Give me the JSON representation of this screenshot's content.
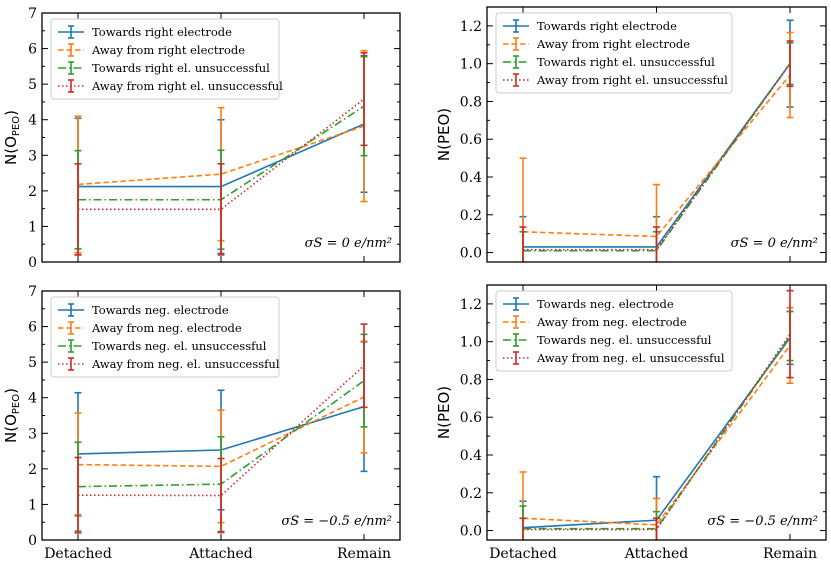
{
  "chart_data": [
    {
      "type": "line",
      "panel": "top-left",
      "categories": [
        "Detached",
        "Attached",
        "Remain"
      ],
      "ylabel": "N(O",
      "ylabel_sub": "PEO",
      "ylabel_close": ")",
      "ylim": [
        0,
        7
      ],
      "yticks": [
        "0",
        "1",
        "2",
        "3",
        "4",
        "5",
        "6",
        "7"
      ],
      "show_xticklabels": false,
      "annotation": "σS = 0 e/nm²",
      "legend_position": "upper-left",
      "series": [
        {
          "name": "Towards right electrode",
          "color": "#1f77b4",
          "dash": "solid",
          "values": [
            2.12,
            2.12,
            3.88
          ],
          "errors": [
            1.92,
            1.88,
            1.92
          ]
        },
        {
          "name": "Away from right electrode",
          "color": "#ff7f0e",
          "dash": "dashed",
          "values": [
            2.18,
            2.47,
            3.82
          ],
          "errors": [
            1.92,
            1.87,
            2.12
          ]
        },
        {
          "name": "Towards right el. unsuccessful",
          "color": "#2ca02c",
          "dash": "dashdot",
          "values": [
            1.75,
            1.75,
            4.38
          ],
          "errors": [
            1.38,
            1.39,
            1.39
          ]
        },
        {
          "name": "Away from right el. unsuccessful",
          "color": "#d62728",
          "dash": "dotted",
          "values": [
            1.48,
            1.48,
            4.58
          ],
          "errors": [
            1.28,
            1.28,
            1.3
          ]
        }
      ]
    },
    {
      "type": "line",
      "panel": "top-right",
      "categories": [
        "Detached",
        "Attached",
        "Remain"
      ],
      "ylabel": "N(PEO)",
      "ylim": [
        -0.05,
        1.3
      ],
      "yticks": [
        "0.0",
        "0.2",
        "0.4",
        "0.6",
        "0.8",
        "1.0",
        "1.2"
      ],
      "show_xticklabels": false,
      "annotation": "σS = 0 e/nm²",
      "legend_position": "upper-left",
      "series": [
        {
          "name": "Towards right electrode",
          "color": "#1f77b4",
          "dash": "solid",
          "values": [
            0.03,
            0.03,
            1.0
          ],
          "errors": [
            0.16,
            0.16,
            0.23
          ]
        },
        {
          "name": "Away from right electrode",
          "color": "#ff7f0e",
          "dash": "dashed",
          "values": [
            0.11,
            0.085,
            0.94
          ],
          "errors": [
            0.39,
            0.275,
            0.225
          ]
        },
        {
          "name": "Towards right el. unsuccessful",
          "color": "#2ca02c",
          "dash": "dashdot",
          "values": [
            0.01,
            0.01,
            1.0
          ],
          "errors": [
            0.1,
            0.1,
            0.11
          ]
        },
        {
          "name": "Away from right el. unsuccessful",
          "color": "#d62728",
          "dash": "dotted",
          "values": [
            0.015,
            0.015,
            1.0
          ],
          "errors": [
            0.12,
            0.12,
            0.12
          ]
        }
      ]
    },
    {
      "type": "line",
      "panel": "bottom-left",
      "categories": [
        "Detached",
        "Attached",
        "Remain"
      ],
      "ylabel": "N(O",
      "ylabel_sub": "PEO",
      "ylabel_close": ")",
      "ylim": [
        0,
        7
      ],
      "yticks": [
        "0",
        "1",
        "2",
        "3",
        "4",
        "5",
        "6",
        "7"
      ],
      "show_xticklabels": true,
      "annotation": "σS = −0.5 e/nm²",
      "legend_position": "upper-left",
      "series": [
        {
          "name": "Towards neg. electrode",
          "color": "#1f77b4",
          "dash": "solid",
          "values": [
            2.42,
            2.53,
            3.75
          ],
          "errors": [
            1.72,
            1.68,
            1.82
          ]
        },
        {
          "name": "Away from neg. electrode",
          "color": "#ff7f0e",
          "dash": "dashed",
          "values": [
            2.12,
            2.07,
            4.02
          ],
          "errors": [
            1.45,
            1.58,
            1.57
          ]
        },
        {
          "name": "Towards neg. el. unsuccessful",
          "color": "#2ca02c",
          "dash": "dashdot",
          "values": [
            1.5,
            1.57,
            4.48
          ],
          "errors": [
            1.25,
            1.33,
            1.3
          ]
        },
        {
          "name": "Away from neg. el. unsuccessful",
          "color": "#d62728",
          "dash": "dotted",
          "values": [
            1.26,
            1.25,
            4.9
          ],
          "errors": [
            1.06,
            1.04,
            1.17
          ]
        }
      ]
    },
    {
      "type": "line",
      "panel": "bottom-right",
      "categories": [
        "Detached",
        "Attached",
        "Remain"
      ],
      "ylabel": "N(PEO)",
      "ylim": [
        -0.05,
        1.3
      ],
      "yticks": [
        "0.0",
        "0.2",
        "0.4",
        "0.6",
        "0.8",
        "1.0",
        "1.2"
      ],
      "show_xticklabels": true,
      "annotation": "σS = −0.5 e/nm²",
      "legend_position": "upper-left",
      "series": [
        {
          "name": "Towards neg. electrode",
          "color": "#1f77b4",
          "dash": "solid",
          "values": [
            0.015,
            0.055,
            1.02
          ],
          "errors": [
            0.14,
            0.23,
            0.14
          ]
        },
        {
          "name": "Away from neg. electrode",
          "color": "#ff7f0e",
          "dash": "dashed",
          "values": [
            0.065,
            0.03,
            0.98
          ],
          "errors": [
            0.245,
            0.14,
            0.2
          ]
        },
        {
          "name": "Towards neg. el. unsuccessful",
          "color": "#2ca02c",
          "dash": "dashdot",
          "values": [
            0.01,
            0.01,
            1.03
          ],
          "errors": [
            0.12,
            0.09,
            0.13
          ]
        },
        {
          "name": "Away from neg. el. unsuccessful",
          "color": "#d62728",
          "dash": "dotted",
          "values": [
            0.005,
            0.005,
            1.04
          ],
          "errors": [
            0.06,
            0.06,
            0.23
          ]
        }
      ]
    }
  ]
}
